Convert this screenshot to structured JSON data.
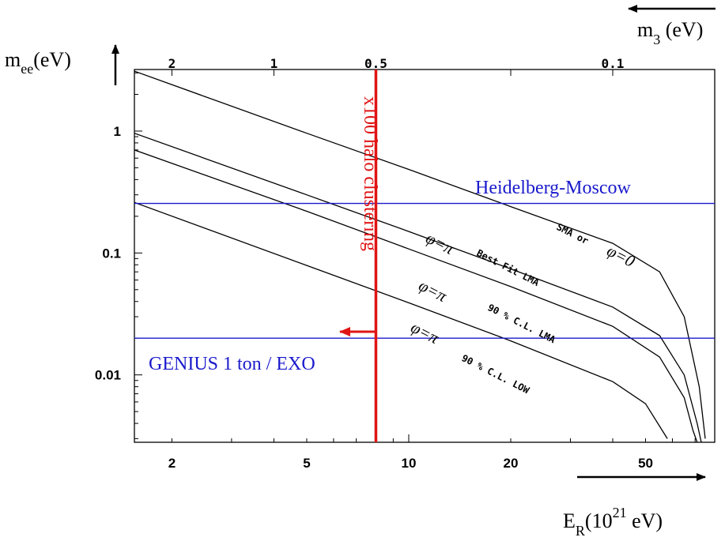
{
  "chart_data": {
    "type": "line",
    "title": "",
    "x_scale": "log",
    "y_scale": "log",
    "xlim": [
      1.55,
      80
    ],
    "ylim": [
      0.0028,
      3.2
    ],
    "x_ticks": [
      2,
      5,
      10,
      20,
      50
    ],
    "x_tick_labels": [
      "2",
      "5",
      "10",
      "20",
      "50"
    ],
    "y_ticks": [
      1,
      0.1,
      0.01
    ],
    "y_tick_labels": [
      "1",
      "0.1",
      "0.01"
    ],
    "top_axis": {
      "ticks": [
        2,
        1,
        0.5,
        0.1
      ],
      "tick_labels": [
        "2",
        "1",
        "0.5",
        "0.1"
      ],
      "label_base": "m",
      "label_sub": "3",
      "label_unit": " (eV)"
    },
    "xlabel": {
      "base": "E",
      "sub": "R",
      "open": "(10",
      "sup": "21",
      "close": "  eV)"
    },
    "ylabel": {
      "base": "m",
      "sub": "ee",
      "unit": "(eV)"
    },
    "series": [
      {
        "label_prefix": "",
        "label": "SMA or φ=0",
        "x": [
          1.55,
          5,
          10,
          20,
          40,
          55,
          65,
          72,
          75
        ],
        "y": [
          3.1,
          0.96,
          0.485,
          0.24,
          0.12,
          0.07,
          0.03,
          0.008,
          0.003
        ]
      },
      {
        "label_prefix": "φ=π",
        "label": "Best Fit LMA",
        "x": [
          1.55,
          5,
          10,
          20,
          40,
          55,
          65,
          71,
          73
        ],
        "y": [
          0.96,
          0.3,
          0.15,
          0.074,
          0.036,
          0.021,
          0.01,
          0.004,
          0.0028
        ]
      },
      {
        "label_prefix": "φ=π",
        "label": "90 % C.L. LMA",
        "x": [
          1.55,
          5,
          10,
          20,
          40,
          55,
          65,
          69,
          71
        ],
        "y": [
          0.7,
          0.22,
          0.108,
          0.053,
          0.025,
          0.014,
          0.0065,
          0.0035,
          0.0028
        ]
      },
      {
        "label_prefix": "φ=π",
        "label": "90 % C.L. LOW",
        "x": [
          1.55,
          5,
          10,
          20,
          40,
          50,
          58
        ],
        "y": [
          0.26,
          0.079,
          0.039,
          0.019,
          0.0088,
          0.0058,
          0.003
        ]
      }
    ],
    "hlines": [
      {
        "y": 0.255,
        "label": "Heidelberg-Moscow",
        "color": "#1a1acc"
      },
      {
        "y": 0.02,
        "label": "GENIUS 1 ton / EXO",
        "color": "#1a1acc"
      }
    ],
    "vline": {
      "x": 8,
      "label": "x100 halo clustering",
      "color": "#e01414"
    }
  }
}
